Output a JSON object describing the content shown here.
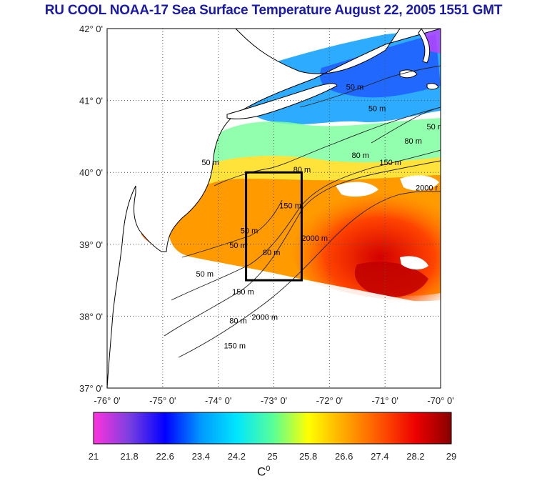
{
  "title": "RU COOL  NOAA-17 Sea Surface Temperature August 22, 2005 1551 GMT",
  "map": {
    "lon_range": [
      -76,
      -70
    ],
    "lat_range": [
      37,
      42
    ],
    "lon_ticks": [
      "-76° 0'",
      "-75° 0'",
      "-74° 0'",
      "-73° 0'",
      "-72° 0'",
      "-71° 0'",
      "-70° 0'"
    ],
    "lat_ticks": [
      "42° 0'",
      "41° 0'",
      "40° 0'",
      "39° 0'",
      "38° 0'",
      "37° 0'"
    ],
    "grid": true,
    "study_box": {
      "lon": [
        -73.5,
        -72.5
      ],
      "lat": [
        38.5,
        40.0
      ]
    },
    "contour_labels": [
      {
        "text": "50 m",
        "lon": -74.3,
        "lat": 40.1
      },
      {
        "text": "50 m",
        "lon": -73.6,
        "lat": 39.15
      },
      {
        "text": "50 m",
        "lon": -73.8,
        "lat": 38.95
      },
      {
        "text": "50 m",
        "lon": -74.4,
        "lat": 38.55
      },
      {
        "text": "80 m",
        "lon": -73.2,
        "lat": 38.85
      },
      {
        "text": "80 m",
        "lon": -72.65,
        "lat": 40.0
      },
      {
        "text": "80 m",
        "lon": -73.8,
        "lat": 37.9
      },
      {
        "text": "150 m",
        "lon": -72.9,
        "lat": 39.5
      },
      {
        "text": "150 m",
        "lon": -73.75,
        "lat": 38.3
      },
      {
        "text": "150 m",
        "lon": -73.9,
        "lat": 37.55
      },
      {
        "text": "2000 m",
        "lon": -72.5,
        "lat": 39.05
      },
      {
        "text": "2000 m",
        "lon": -73.4,
        "lat": 37.95
      },
      {
        "text": "2000 r",
        "lon": -70.45,
        "lat": 39.75
      },
      {
        "text": "50 m",
        "lon": -71.7,
        "lat": 41.15
      },
      {
        "text": "50 m",
        "lon": -71.3,
        "lat": 40.85
      },
      {
        "text": "80 m",
        "lon": -71.6,
        "lat": 40.2
      },
      {
        "text": "80 m",
        "lon": -70.65,
        "lat": 40.4
      },
      {
        "text": "150 m",
        "lon": -71.1,
        "lat": 40.1
      },
      {
        "text": "50 m",
        "lon": -70.25,
        "lat": 40.6
      }
    ]
  },
  "colorbar": {
    "min": 21,
    "max": 29,
    "tick_labels": [
      "21",
      "21.8",
      "22.6",
      "23.4",
      "24.2",
      "25",
      "25.8",
      "26.6",
      "27.4",
      "28.2",
      "29"
    ],
    "unit_label": "C",
    "unit_superscript": "0",
    "colors": [
      "#ff33dd",
      "#7a3fe0",
      "#0000ff",
      "#0099ff",
      "#00e6ff",
      "#55ff99",
      "#ffff00",
      "#ffaa00",
      "#ff5500",
      "#ee0000",
      "#880000"
    ]
  },
  "colors": {
    "title": "#1a1aa8",
    "land": "#ffffff",
    "coastline": "#000000",
    "box": "#000000"
  }
}
